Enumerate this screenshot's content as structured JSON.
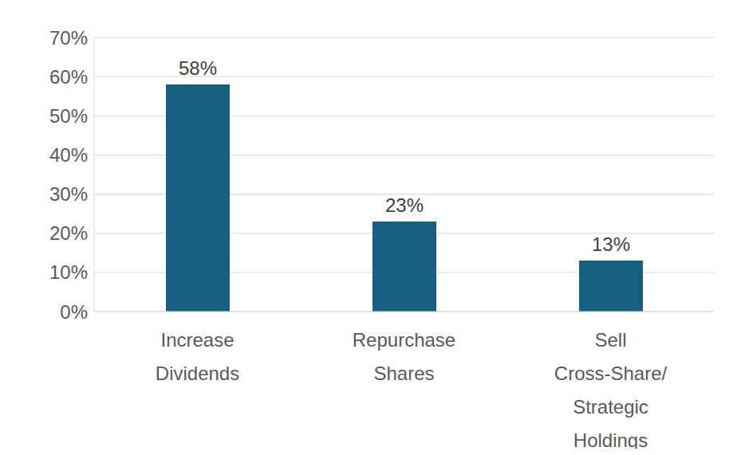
{
  "chart_data": {
    "type": "bar",
    "categories": [
      "Increase Dividends",
      "Repurchase Shares",
      "Sell Cross-Share/ Strategic Holdings"
    ],
    "values": [
      58,
      23,
      13
    ],
    "value_labels": [
      "58%",
      "23%",
      "13%"
    ],
    "data_labels": true,
    "color": "#156082",
    "ylim": [
      0,
      70
    ],
    "yticks": [
      {
        "value": 0,
        "label": "0%"
      },
      {
        "value": 10,
        "label": "10%"
      },
      {
        "value": 20,
        "label": "20%"
      },
      {
        "value": 30,
        "label": "30%"
      },
      {
        "value": 40,
        "label": "40%"
      },
      {
        "value": 50,
        "label": "50%"
      },
      {
        "value": 60,
        "label": "60%"
      },
      {
        "value": 70,
        "label": "70%"
      }
    ],
    "grid": true
  }
}
